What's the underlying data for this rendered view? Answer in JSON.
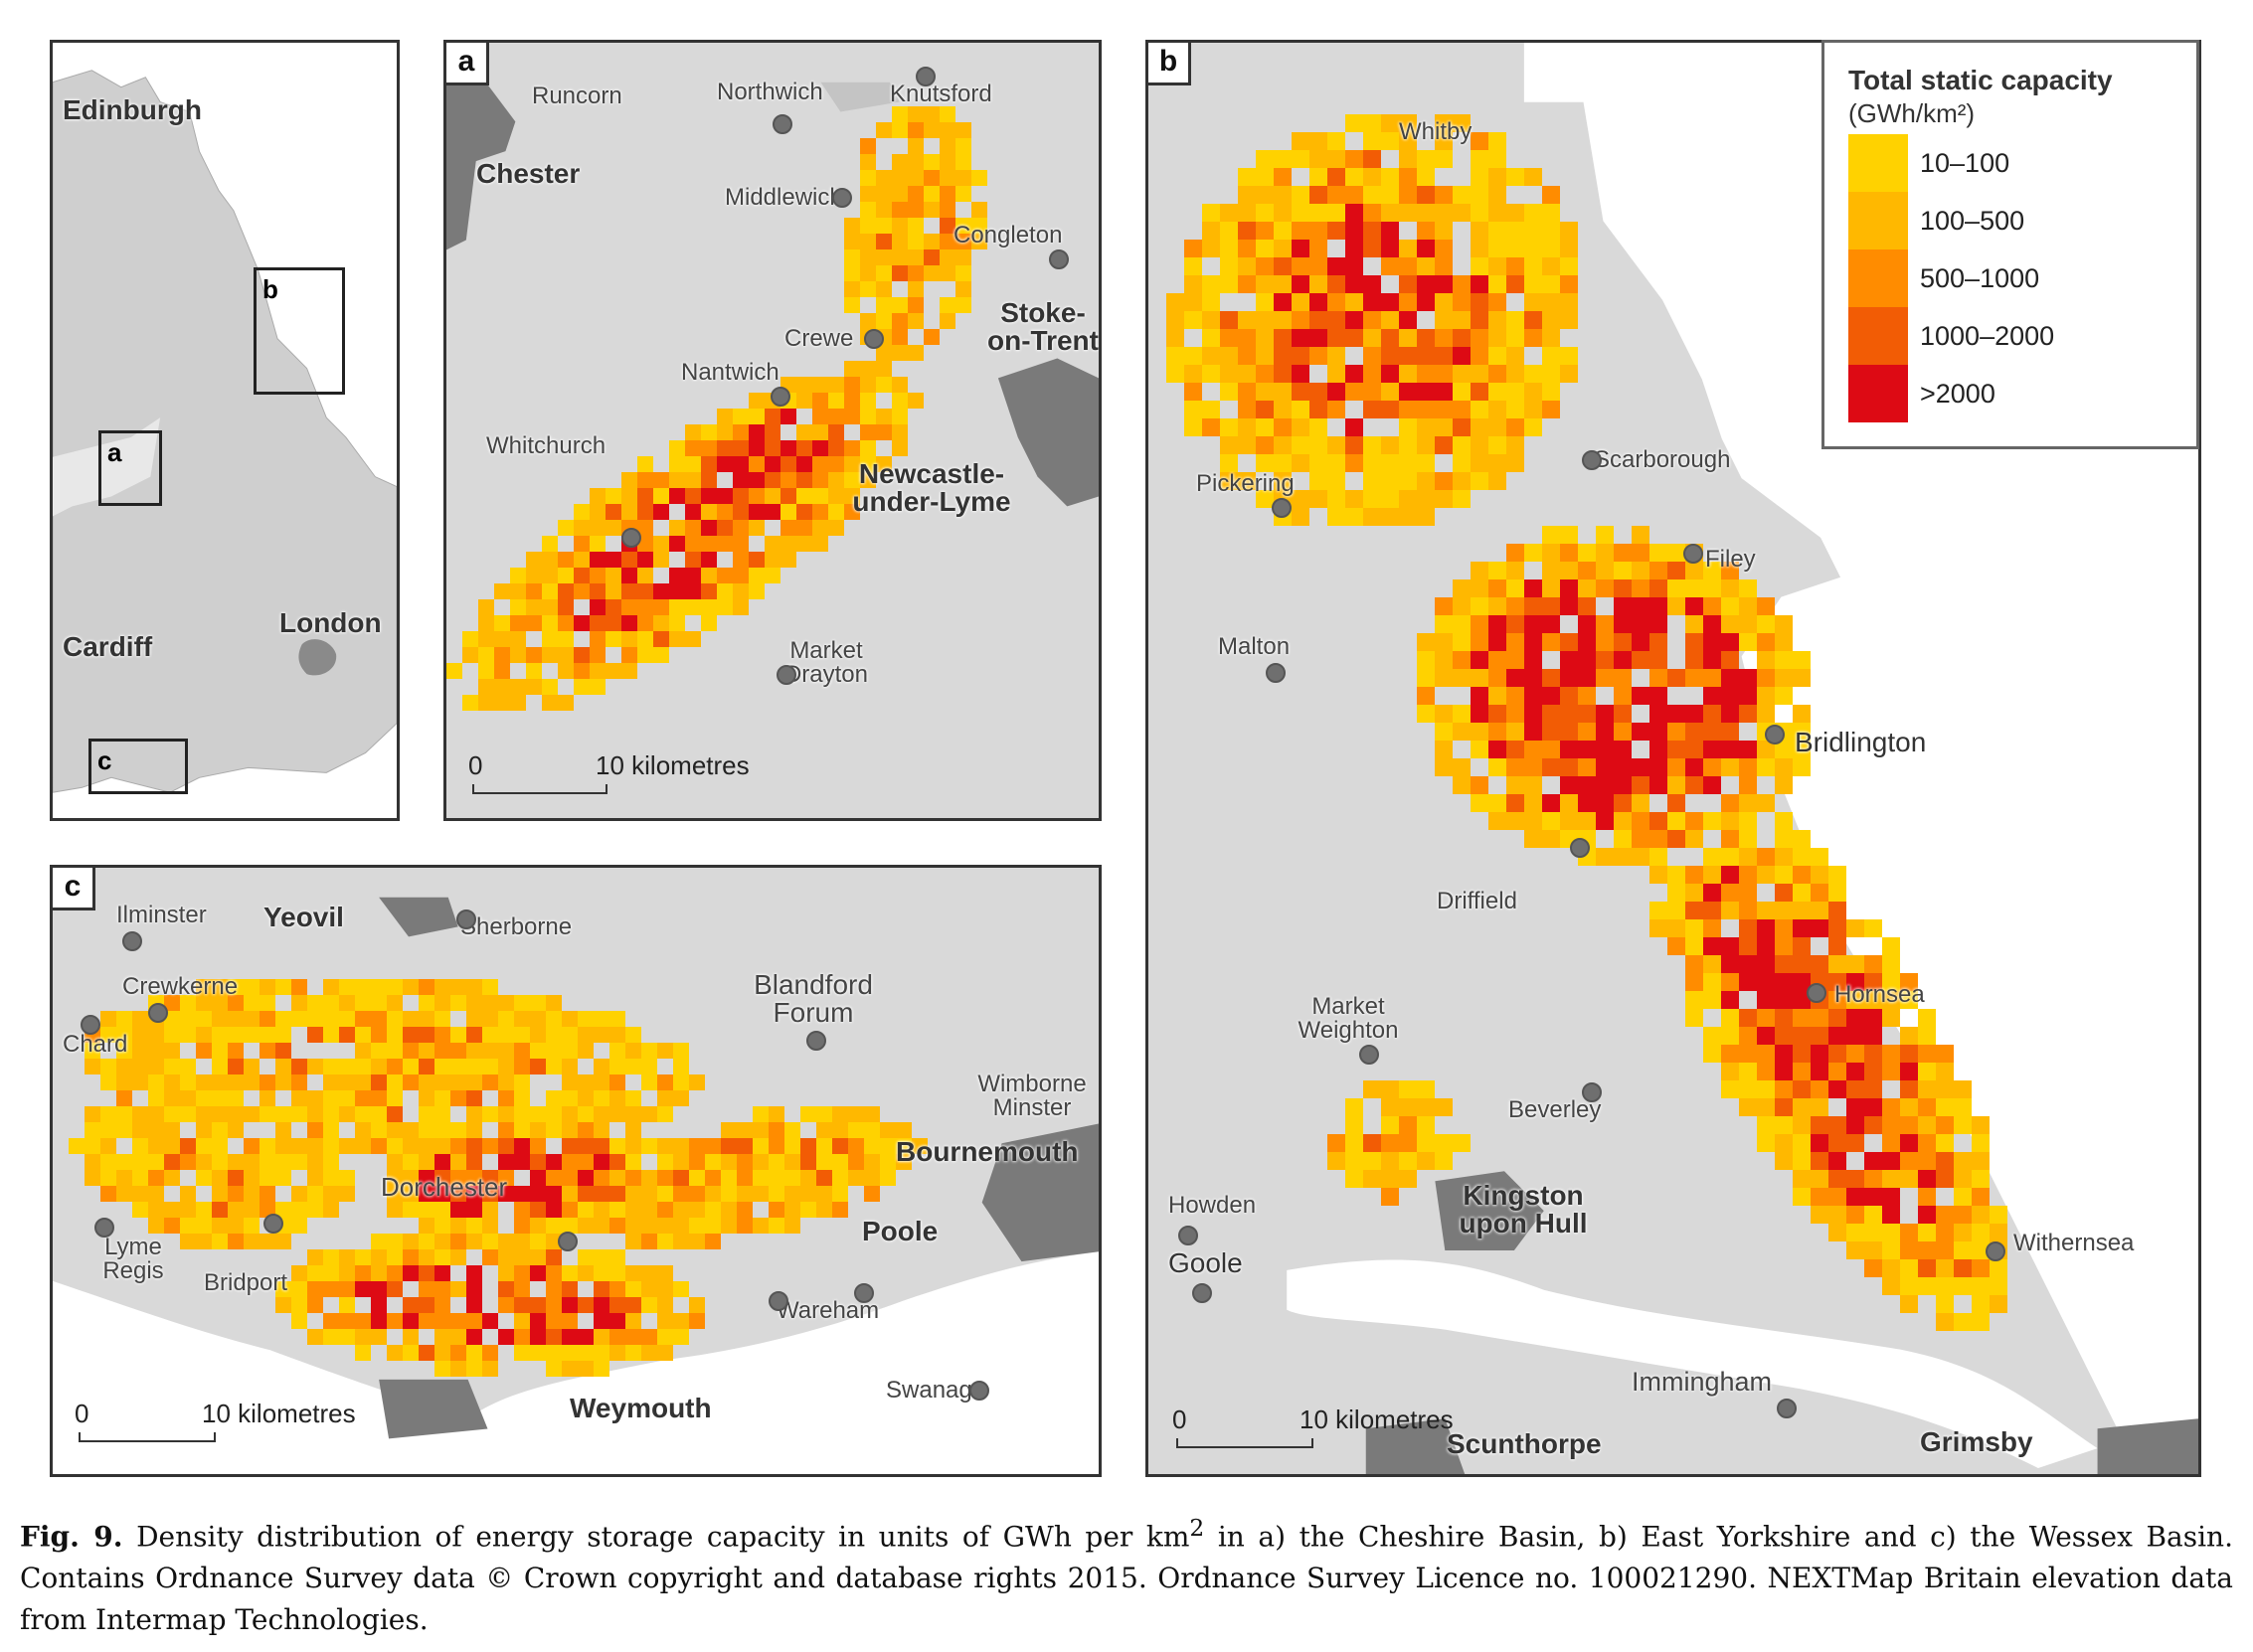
{
  "legend": {
    "title": "Total static capacity",
    "unit": "(GWh/km²)",
    "classes": [
      {
        "label": "10–100",
        "color": "#ffd200"
      },
      {
        "label": "100–500",
        "color": "#ffb800"
      },
      {
        "label": "500–1000",
        "color": "#ff8c00"
      },
      {
        "label": "1000–2000",
        "color": "#f25c05"
      },
      {
        "label": ">2000",
        "color": "#dd0a14"
      }
    ]
  },
  "overview": {
    "places": [
      "Edinburgh",
      "Cardiff",
      "London"
    ],
    "boxes": [
      "a",
      "b",
      "c"
    ]
  },
  "panel_a": {
    "label": "a",
    "places": [
      "Runcorn",
      "Northwich",
      "Knutsford",
      "Chester",
      "Middlewich",
      "Congleton",
      "Crewe",
      "Stoke-\non-Trent",
      "Nantwich",
      "Whitchurch",
      "Newcastle-\nunder-Lyme",
      "Market\nDrayton"
    ],
    "scale_zero": "0",
    "scale_label": "10 kilometres"
  },
  "panel_b": {
    "label": "b",
    "places": [
      "Whitby",
      "Scarborough",
      "Pickering",
      "Filey",
      "Malton",
      "Bridlington",
      "Driffield",
      "Hornsea",
      "Market\nWeighton",
      "Beverley",
      "Howden",
      "Kingston\nupon Hull",
      "Goole",
      "Withernsea",
      "Immingham",
      "Scunthorpe",
      "Grimsby"
    ],
    "scale_zero": "0",
    "scale_label": "10 kilometres"
  },
  "panel_c": {
    "label": "c",
    "places": [
      "Ilminster",
      "Yeovil",
      "Sherborne",
      "Crewkerne",
      "Blandford\nForum",
      "Chard",
      "Wimborne\nMinster",
      "Bournemouth",
      "Dorchester",
      "Poole",
      "Lyme\nRegis",
      "Bridport",
      "Wareham",
      "Swanage",
      "Weymouth"
    ],
    "scale_zero": "0",
    "scale_label": "10 kilometres"
  },
  "caption": {
    "fig": "Fig. 9.",
    "text_1": " Density distribution of energy storage capacity in units of GWh per km",
    "sup": "2",
    "text_2": " in a) the Cheshire Basin, b) East Yorkshire and c) the Wessex Basin. Contains Ordnance Survey data © Crown copyright and database rights 2015. Ordnance Survey Licence no. 100021290. NEXTMap Britain elevation data from Intermap Technologies."
  }
}
